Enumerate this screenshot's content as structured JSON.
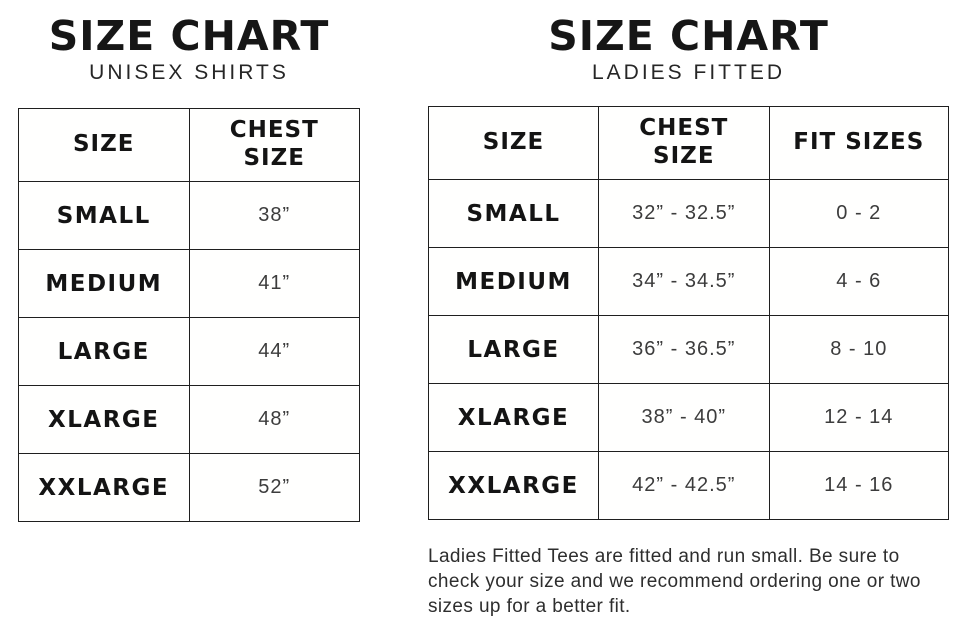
{
  "charts": [
    {
      "title": "SIZE CHART",
      "subtitle": "UNISEX SHIRTS",
      "columns": [
        "SIZE",
        "CHEST\nSIZE"
      ],
      "rows": [
        [
          "SMALL",
          "38”"
        ],
        [
          "MEDIUM",
          "41”"
        ],
        [
          "LARGE",
          "44”"
        ],
        [
          "XLARGE",
          "48”"
        ],
        [
          "XXLARGE",
          "52”"
        ]
      ]
    },
    {
      "title": "SIZE CHART",
      "subtitle": "LADIES FITTED",
      "columns": [
        "SIZE",
        "CHEST\nSIZE",
        "FIT SIZES"
      ],
      "rows": [
        [
          "SMALL",
          "32” - 32.5”",
          "0 - 2"
        ],
        [
          "MEDIUM",
          "34” - 34.5”",
          "4 - 6"
        ],
        [
          "LARGE",
          "36” - 36.5”",
          "8 - 10"
        ],
        [
          "XLARGE",
          "38” - 40”",
          "12 - 14"
        ],
        [
          "XXLARGE",
          "42” - 42.5”",
          "14 - 16"
        ]
      ],
      "note": "Ladies Fitted Tees are fitted and run small. Be sure to check your size and we recommend ordering one or two sizes up for a better fit."
    }
  ],
  "colors": {
    "background": "#ffffff",
    "border": "#1f1f1f",
    "heading_text": "#161616",
    "value_text": "#3c3c3c"
  }
}
